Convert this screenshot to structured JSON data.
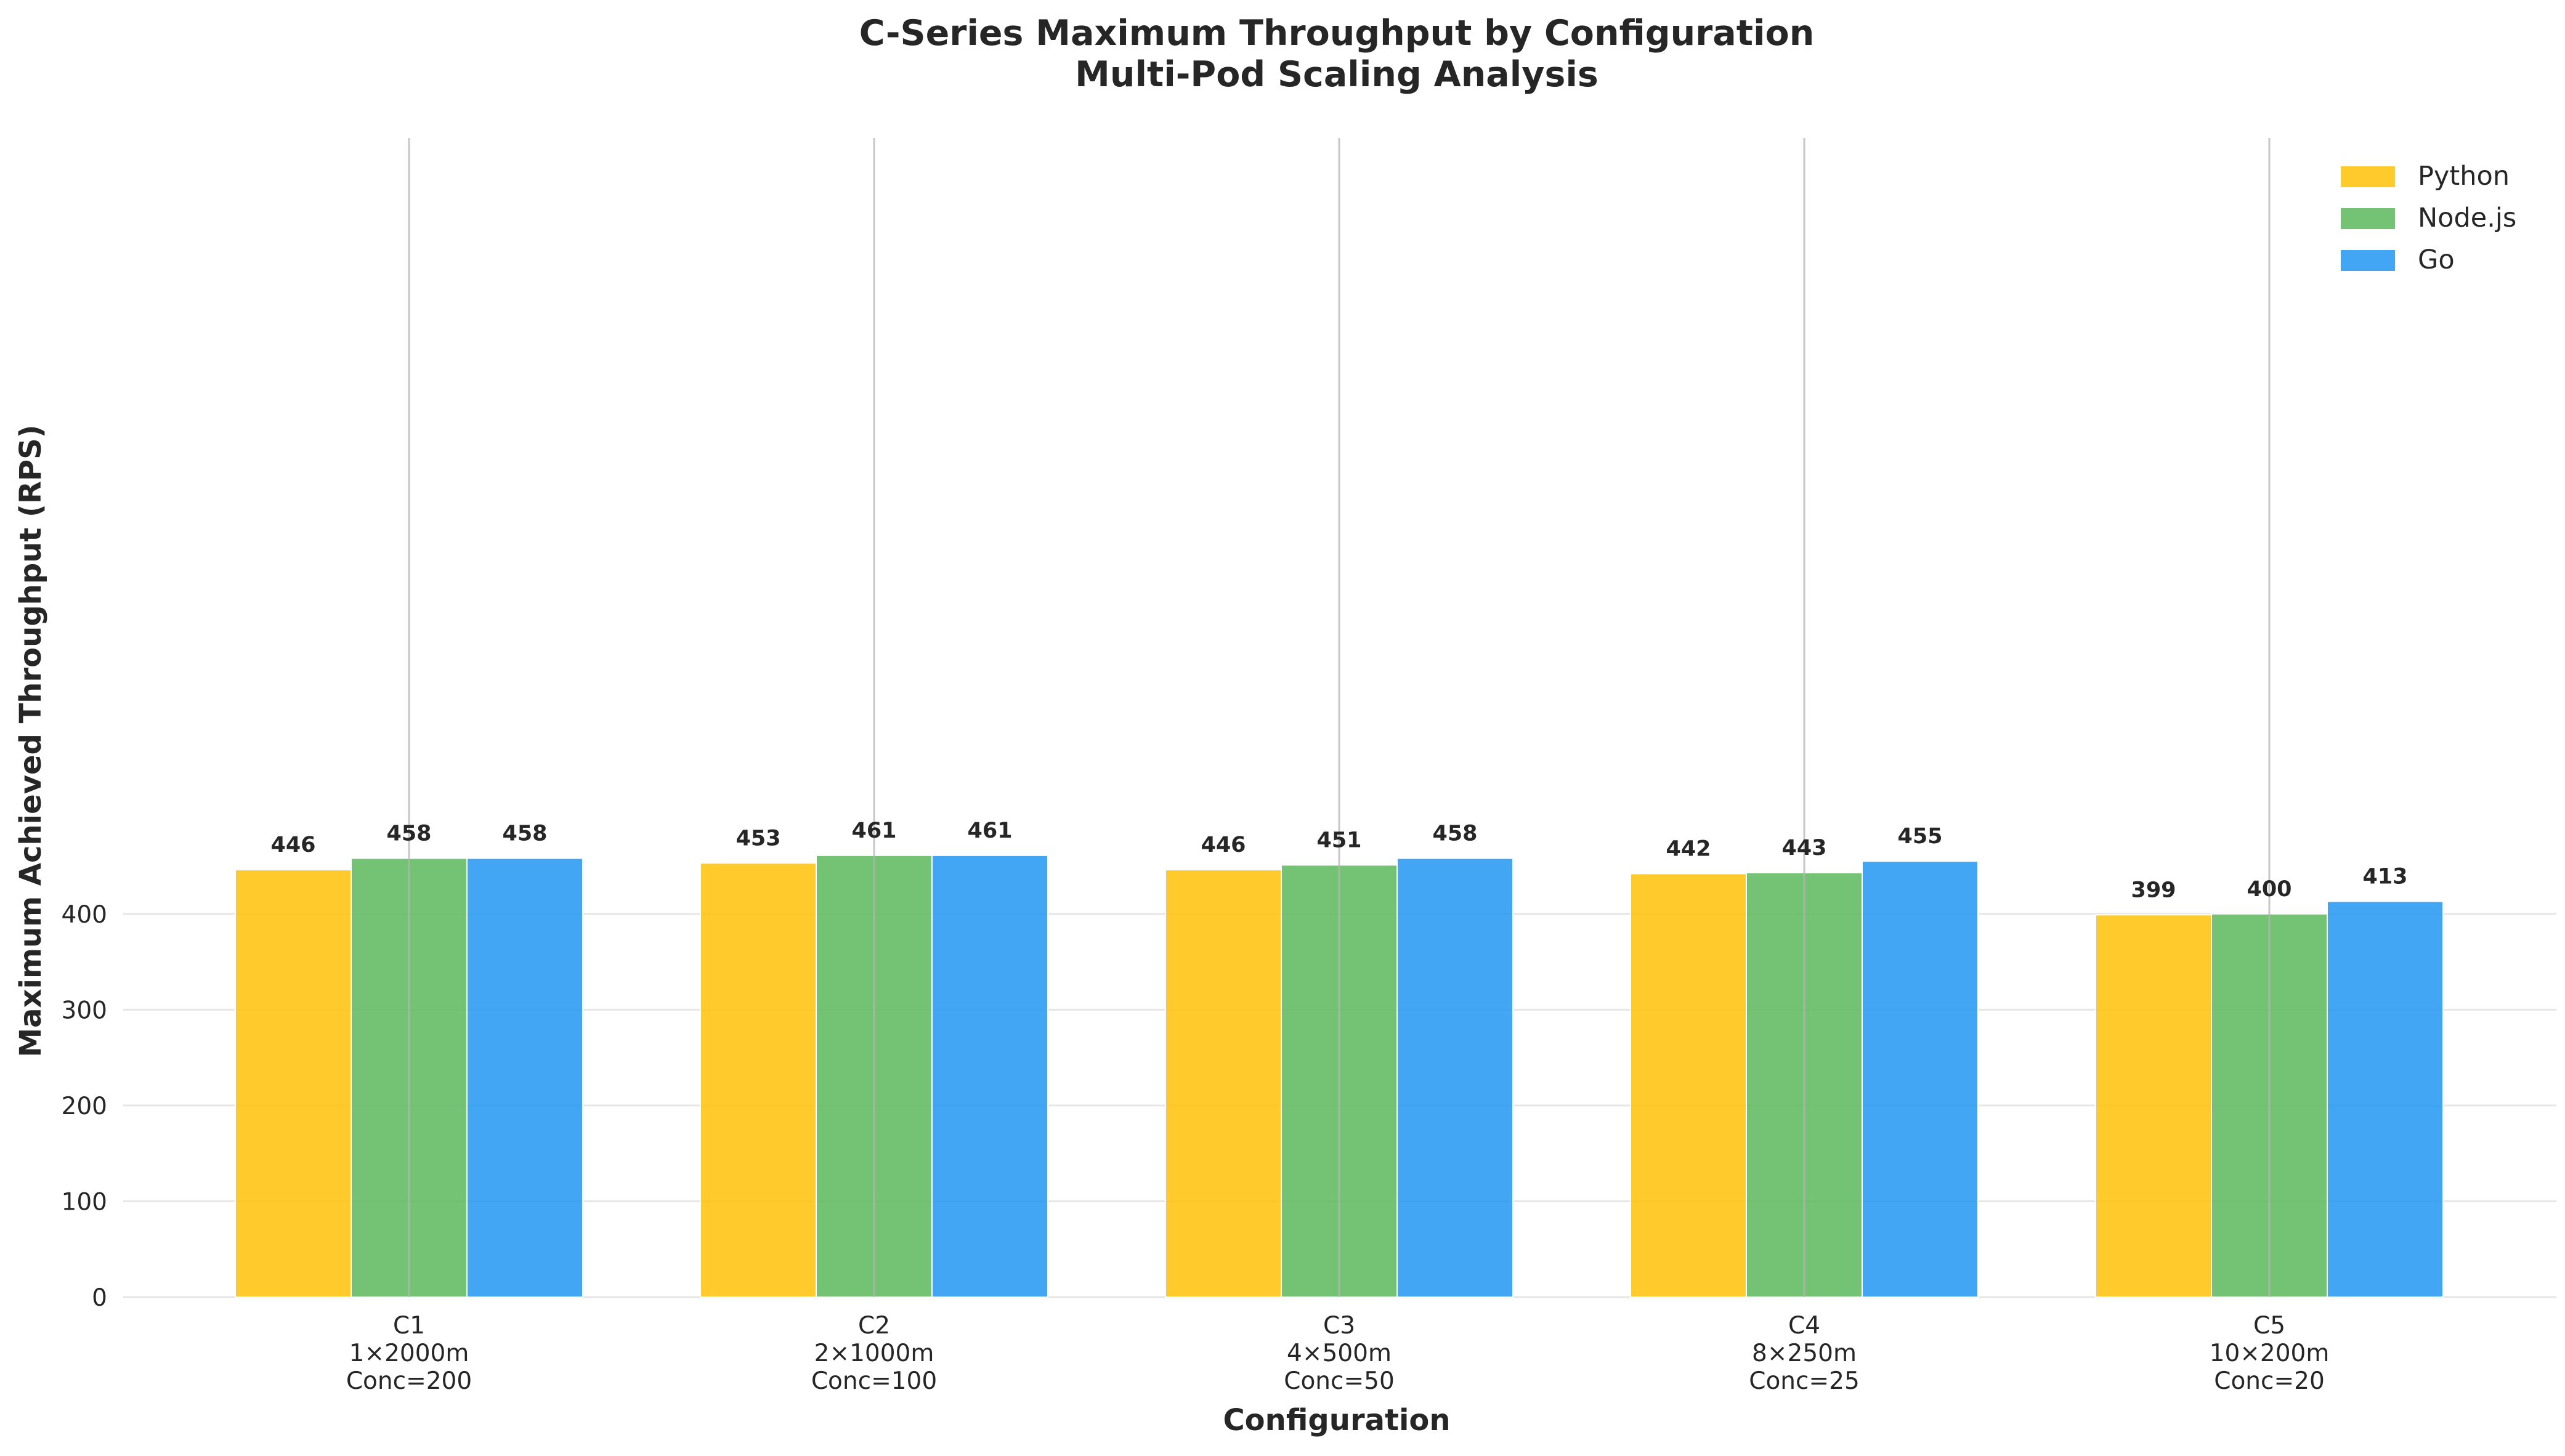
{
  "chart_data": {
    "type": "bar",
    "title": "C-Series Maximum Throughput by Configuration",
    "subtitle": "Multi-Pod Scaling Analysis",
    "xlabel": "Configuration",
    "ylabel": "Maximum Achieved Throughput (RPS)",
    "ylim": [
      0,
      480
    ],
    "yticks": [
      0,
      100,
      200,
      300,
      400
    ],
    "grid": true,
    "legend_position": "top-right",
    "categories": [
      [
        "C1",
        "1×2000m",
        "Conc=200"
      ],
      [
        "C2",
        "2×1000m",
        "Conc=100"
      ],
      [
        "C3",
        "4×500m",
        "Conc=50"
      ],
      [
        "C4",
        "8×250m",
        "Conc=25"
      ],
      [
        "C5",
        "10×200m",
        "Conc=20"
      ]
    ],
    "series": [
      {
        "name": "Python",
        "color": "#FFC107",
        "values": [
          446,
          453,
          446,
          442,
          399
        ]
      },
      {
        "name": "Node.js",
        "color": "#5CB85C",
        "values": [
          458,
          461,
          451,
          443,
          400
        ]
      },
      {
        "name": "Go",
        "color": "#2196F3",
        "values": [
          458,
          461,
          458,
          455,
          413
        ]
      }
    ]
  }
}
